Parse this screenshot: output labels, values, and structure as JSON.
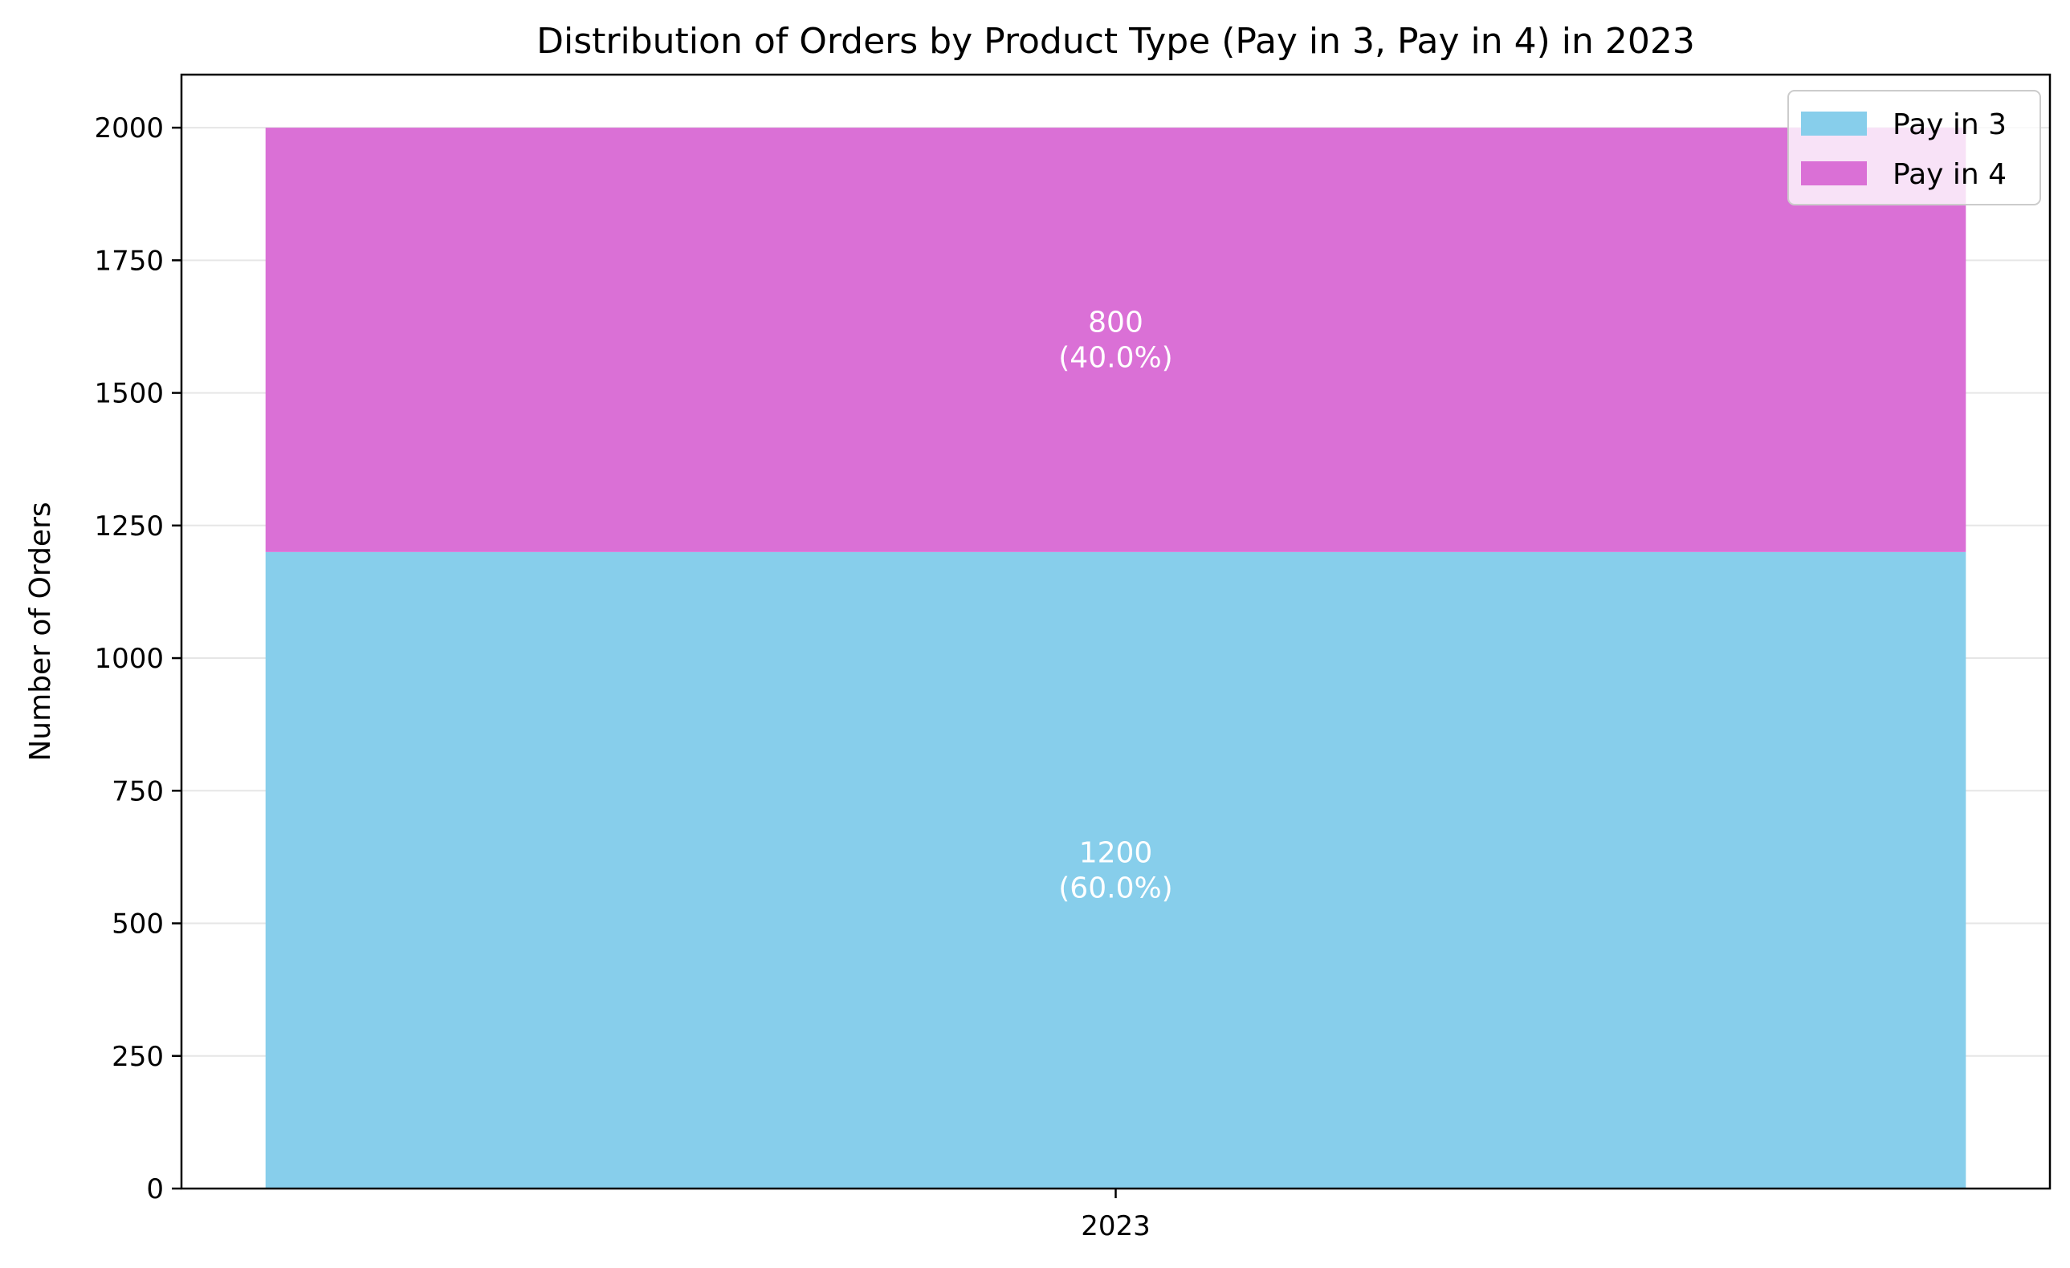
{
  "chart_data": {
    "type": "bar",
    "stacked": true,
    "title": "Distribution of Orders by Product Type (Pay in 3, Pay in 4) in 2023",
    "xlabel": "",
    "ylabel": "Number of Orders",
    "categories": [
      "2023"
    ],
    "series": [
      {
        "name": "Pay in 3",
        "values": [
          1200
        ],
        "color": "#87CEEB",
        "labels": [
          "1200\n(60.0%)"
        ]
      },
      {
        "name": "Pay in 4",
        "values": [
          800
        ],
        "color": "#DA70D6",
        "labels": [
          "800\n(40.0%)"
        ]
      }
    ],
    "ylim": [
      0,
      2100
    ],
    "yticks": [
      0,
      250,
      500,
      750,
      1000,
      1250,
      1500,
      1750,
      2000
    ],
    "grid": "y",
    "legend_position": "top-right"
  }
}
